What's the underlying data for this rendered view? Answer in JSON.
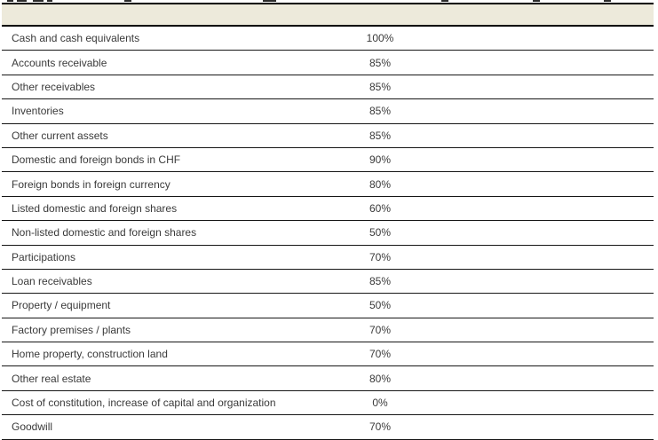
{
  "colors": {
    "header_band": "#edeadb",
    "header_border": "#000000",
    "row_separator": "#161616",
    "text": "#3a3a3a"
  },
  "table": {
    "rows": [
      {
        "label": "Cash and cash equivalents",
        "value": "100%"
      },
      {
        "label": "Accounts receivable",
        "value": "85%"
      },
      {
        "label": "Other receivables",
        "value": "85%"
      },
      {
        "label": "Inventories",
        "value": "85%"
      },
      {
        "label": "Other current assets",
        "value": "85%"
      },
      {
        "label": "Domestic and foreign bonds in CHF",
        "value": "90%"
      },
      {
        "label": "Foreign bonds in foreign currency",
        "value": "80%"
      },
      {
        "label": "Listed domestic and foreign shares",
        "value": "60%"
      },
      {
        "label": "Non-listed domestic and foreign shares",
        "value": "50%"
      },
      {
        "label": "Participations",
        "value": "70%"
      },
      {
        "label": "Loan receivables",
        "value": "85%"
      },
      {
        "label": "Property / equipment",
        "value": "50%"
      },
      {
        "label": "Factory premises / plants",
        "value": "70%"
      },
      {
        "label": "Home property, construction land",
        "value": "70%"
      },
      {
        "label": "Other real estate",
        "value": "80%"
      },
      {
        "label": "Cost of constitution, increase of capital and organization",
        "value": "0%"
      },
      {
        "label": "Goodwill",
        "value": "70%"
      }
    ]
  }
}
